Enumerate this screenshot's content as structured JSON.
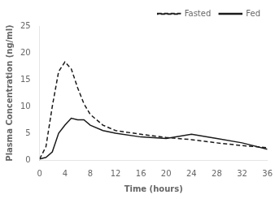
{
  "chart_data": {
    "type": "line",
    "x": [
      0,
      1,
      2,
      3,
      4,
      5,
      6,
      7,
      8,
      10,
      12,
      16,
      20,
      24,
      28,
      32,
      36
    ],
    "series": [
      {
        "name": "Fasted",
        "color": "#1a1a1a",
        "line_style": "dashed",
        "values": [
          0.2,
          2.5,
          10.0,
          16.5,
          18.3,
          17.0,
          13.5,
          10.5,
          8.5,
          6.5,
          5.5,
          4.8,
          4.2,
          3.8,
          3.2,
          2.7,
          2.3
        ]
      },
      {
        "name": "Fed",
        "color": "#1a1a1a",
        "line_style": "solid",
        "values": [
          0.2,
          0.5,
          1.5,
          5.0,
          6.5,
          7.8,
          7.5,
          7.5,
          6.5,
          5.5,
          5.0,
          4.3,
          4.0,
          4.8,
          4.0,
          3.2,
          2.0
        ]
      }
    ],
    "xlabel": "Time (hours)",
    "ylabel": "Plasma Concentration (ng/ml)",
    "xlim": [
      0,
      36
    ],
    "ylim": [
      0,
      25
    ],
    "xticks": [
      0,
      4,
      8,
      12,
      16,
      20,
      24,
      28,
      32,
      36
    ],
    "yticks": [
      0,
      5,
      10,
      15,
      20,
      25
    ],
    "grid": false,
    "legend": "upper right"
  }
}
